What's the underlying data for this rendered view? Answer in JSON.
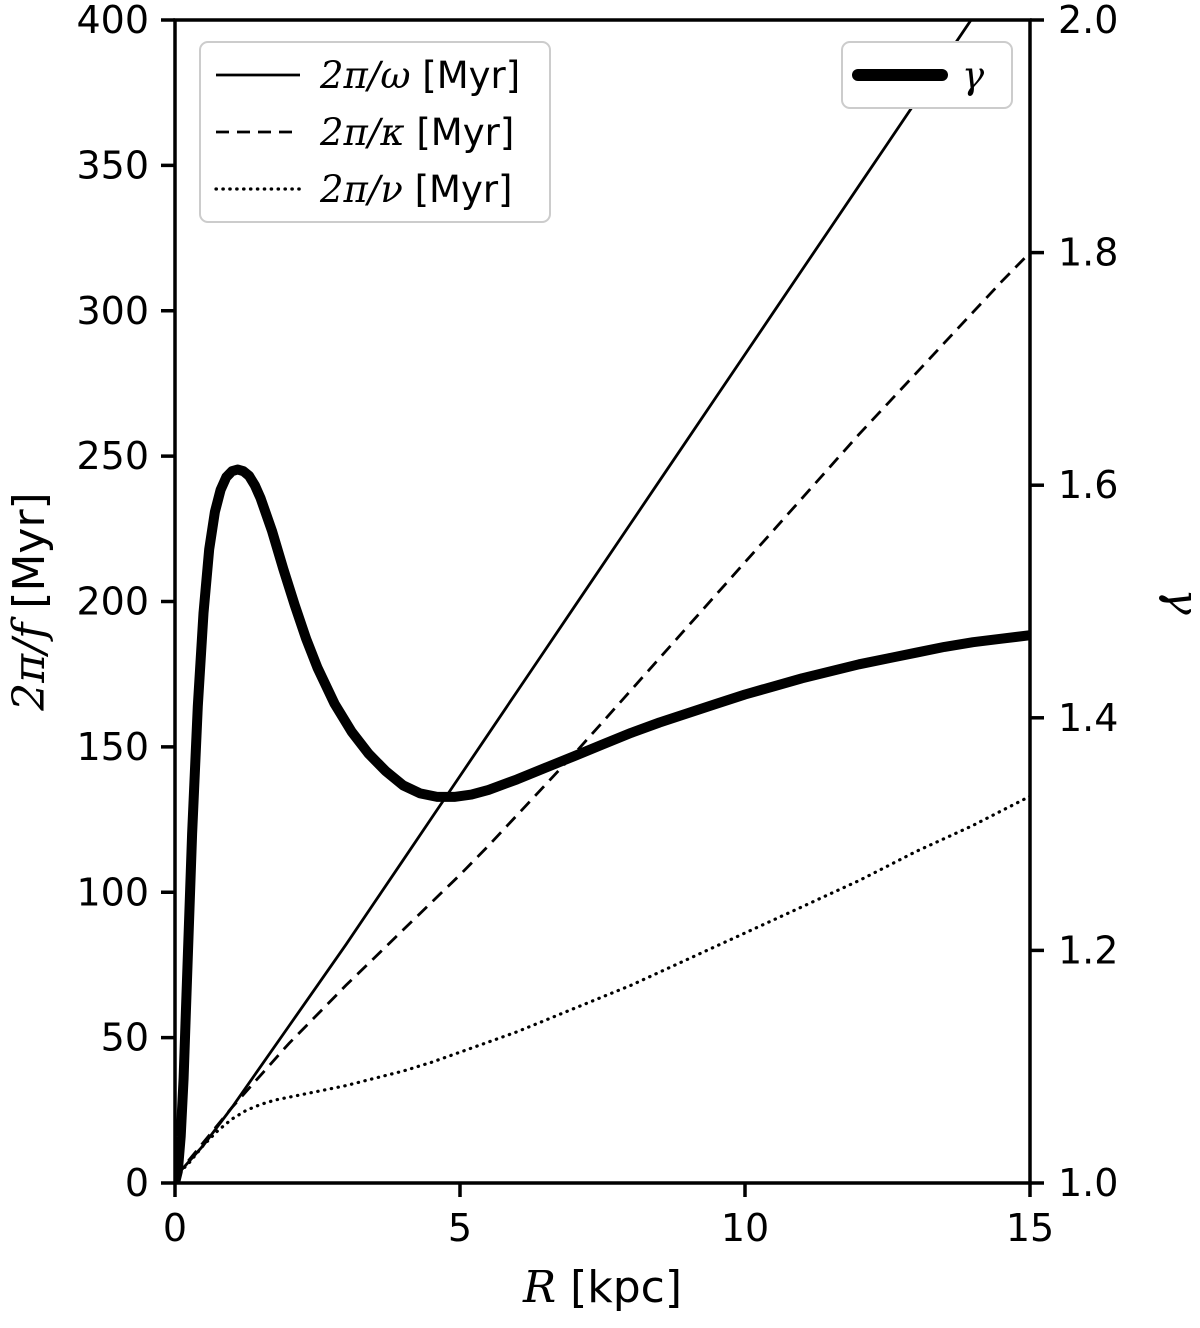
{
  "figure": {
    "background": "#ffffff",
    "line_color": "#000000",
    "legend_edge_color": "#cccccc"
  },
  "chart_data": {
    "type": "line",
    "title": "",
    "grid": false,
    "line_color": "#000000",
    "legend_edge_color": "#cccccc",
    "axes": {
      "x": {
        "label_math": "R",
        "label_unit": "[kpc]",
        "min": 0,
        "max": 15,
        "ticks": [
          0,
          5,
          10,
          15
        ],
        "tick_labels": [
          "0",
          "5",
          "10",
          "15"
        ]
      },
      "y_left": {
        "label_math": "2π/f",
        "label_unit": "[Myr]",
        "min": 0,
        "max": 400,
        "ticks": [
          0,
          50,
          100,
          150,
          200,
          250,
          300,
          350,
          400
        ],
        "tick_labels": [
          "0",
          "50",
          "100",
          "150",
          "200",
          "250",
          "300",
          "350",
          "400"
        ]
      },
      "y_right": {
        "label_math": "γ",
        "label_unit": "",
        "min": 1.0,
        "max": 2.0,
        "ticks": [
          1.0,
          1.2,
          1.4,
          1.6,
          1.8,
          2.0
        ],
        "tick_labels": [
          "1.0",
          "1.2",
          "1.4",
          "1.6",
          "1.8",
          "2.0"
        ]
      }
    },
    "series": [
      {
        "id": "omega",
        "label_math": "2π/ω",
        "label_unit": "[Myr]",
        "style": "solid",
        "axis": "left",
        "x": [
          0,
          0.5,
          1,
          1.5,
          2,
          2.5,
          3,
          3.5,
          4,
          4.5,
          5,
          5.5,
          6,
          6.5,
          7,
          7.5,
          8,
          8.5,
          9,
          9.5,
          10,
          10.5,
          11,
          11.5,
          12,
          12.5,
          13,
          13.5,
          14,
          14.5,
          15
        ],
        "y": [
          2,
          13,
          26,
          40,
          54,
          68,
          82,
          96.5,
          111,
          125.5,
          140,
          154.5,
          169,
          183.5,
          198,
          212.5,
          227,
          241.5,
          256,
          270.5,
          285,
          299.5,
          314,
          328.5,
          343,
          357.5,
          372,
          386.5,
          401,
          415.5,
          430
        ]
      },
      {
        "id": "kappa",
        "label_math": "2π/κ",
        "label_unit": "[Myr]",
        "style": "dashed",
        "axis": "left",
        "x": [
          0,
          0.5,
          1,
          1.5,
          2,
          2.5,
          3,
          3.5,
          4,
          4.5,
          5,
          5.5,
          6,
          6.5,
          7,
          7.5,
          8,
          8.5,
          9,
          9.5,
          10,
          10.5,
          11,
          11.5,
          12,
          12.5,
          13,
          13.5,
          14,
          14.5,
          15
        ],
        "y": [
          2,
          14,
          26,
          37,
          48,
          58,
          68,
          77.5,
          87,
          96.5,
          106,
          116,
          126.5,
          137,
          147.5,
          158.5,
          169.5,
          180.5,
          191.5,
          202.5,
          213.5,
          224.5,
          235.5,
          246.5,
          257.5,
          268,
          278.5,
          289,
          299.5,
          310,
          320
        ]
      },
      {
        "id": "nu",
        "label_math": "2π/ν",
        "label_unit": "[Myr]",
        "style": "dotted",
        "axis": "left",
        "x": [
          0,
          0.25,
          0.5,
          0.75,
          1,
          1.25,
          1.5,
          1.75,
          2,
          2.5,
          3,
          3.5,
          4,
          4.5,
          5,
          5.5,
          6,
          6.5,
          7,
          7.5,
          8,
          8.5,
          9,
          9.5,
          10,
          10.5,
          11,
          11.5,
          12,
          12.5,
          13,
          13.5,
          14,
          14.5,
          15
        ],
        "y": [
          2,
          7,
          13,
          18,
          22,
          25,
          27,
          28.5,
          29.5,
          31.5,
          33.5,
          36,
          38.5,
          41.5,
          45,
          48.5,
          52,
          56,
          60,
          64,
          68,
          72.5,
          77,
          81.5,
          86,
          90.5,
          95,
          99.5,
          104,
          109,
          114,
          118.5,
          123,
          128,
          133
        ]
      },
      {
        "id": "gamma",
        "label_math": "γ",
        "label_unit": "",
        "style": "thick",
        "axis": "right",
        "x": [
          0,
          0.05,
          0.1,
          0.15,
          0.2,
          0.3,
          0.4,
          0.5,
          0.6,
          0.7,
          0.8,
          0.9,
          1.0,
          1.1,
          1.2,
          1.3,
          1.4,
          1.5,
          1.7,
          1.9,
          2.1,
          2.3,
          2.5,
          2.8,
          3.1,
          3.4,
          3.7,
          4.0,
          4.3,
          4.6,
          4.9,
          5.2,
          5.5,
          6.0,
          6.5,
          7.0,
          7.5,
          8.0,
          8.5,
          9.0,
          9.5,
          10.0,
          10.5,
          11.0,
          11.5,
          12.0,
          12.5,
          13.0,
          13.5,
          14.0,
          14.5,
          15.0
        ],
        "y": [
          1.0,
          1.01,
          1.04,
          1.09,
          1.16,
          1.3,
          1.41,
          1.49,
          1.545,
          1.577,
          1.596,
          1.607,
          1.612,
          1.6135,
          1.612,
          1.608,
          1.6,
          1.589,
          1.561,
          1.528,
          1.497,
          1.468,
          1.443,
          1.412,
          1.388,
          1.369,
          1.354,
          1.342,
          1.335,
          1.332,
          1.332,
          1.334,
          1.338,
          1.347,
          1.357,
          1.367,
          1.377,
          1.387,
          1.396,
          1.404,
          1.412,
          1.42,
          1.427,
          1.434,
          1.44,
          1.446,
          1.451,
          1.456,
          1.461,
          1.465,
          1.468,
          1.471
        ]
      }
    ],
    "legends": [
      {
        "position": "top-left",
        "series": [
          0,
          1,
          2
        ]
      },
      {
        "position": "top-right",
        "series": [
          3
        ]
      }
    ]
  }
}
